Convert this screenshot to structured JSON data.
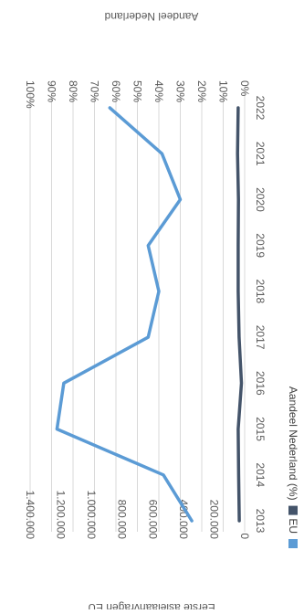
{
  "chart_data": {
    "type": "line",
    "title": "",
    "x": [
      "2013",
      "2014",
      "2015",
      "2016",
      "2017",
      "2018",
      "2019",
      "2020",
      "2021",
      "2022"
    ],
    "series": [
      {
        "name": "EU",
        "axis": "left",
        "color": "#5b9bd5",
        "values": [
          345000,
          530000,
          1225000,
          1180000,
          630000,
          560000,
          630000,
          420000,
          540000,
          880000
        ]
      },
      {
        "name": "Aandeel Nederland (%)",
        "axis": "right",
        "color": "#44546a",
        "values": [
          2.5,
          2.8,
          3.0,
          1.5,
          2.6,
          3.0,
          3.0,
          2.9,
          3.3,
          3.0
        ]
      }
    ],
    "ylabel": "Eerste asielaanvragen EU",
    "y2label": "Aandeel Nederland",
    "ylim": [
      0,
      1400000
    ],
    "y2lim": [
      0,
      100
    ],
    "yticks": [
      "0",
      "200.000",
      "400.000",
      "600.000",
      "800.000",
      "1.000.000",
      "1.200.000",
      "1.400.000"
    ],
    "y2ticks": [
      "0%",
      "10%",
      "20%",
      "30%",
      "40%",
      "50%",
      "60%",
      "70%",
      "80%",
      "90%",
      "100%"
    ],
    "grid": true,
    "legend": "bottom",
    "orientation": "rotated-90-clockwise"
  }
}
